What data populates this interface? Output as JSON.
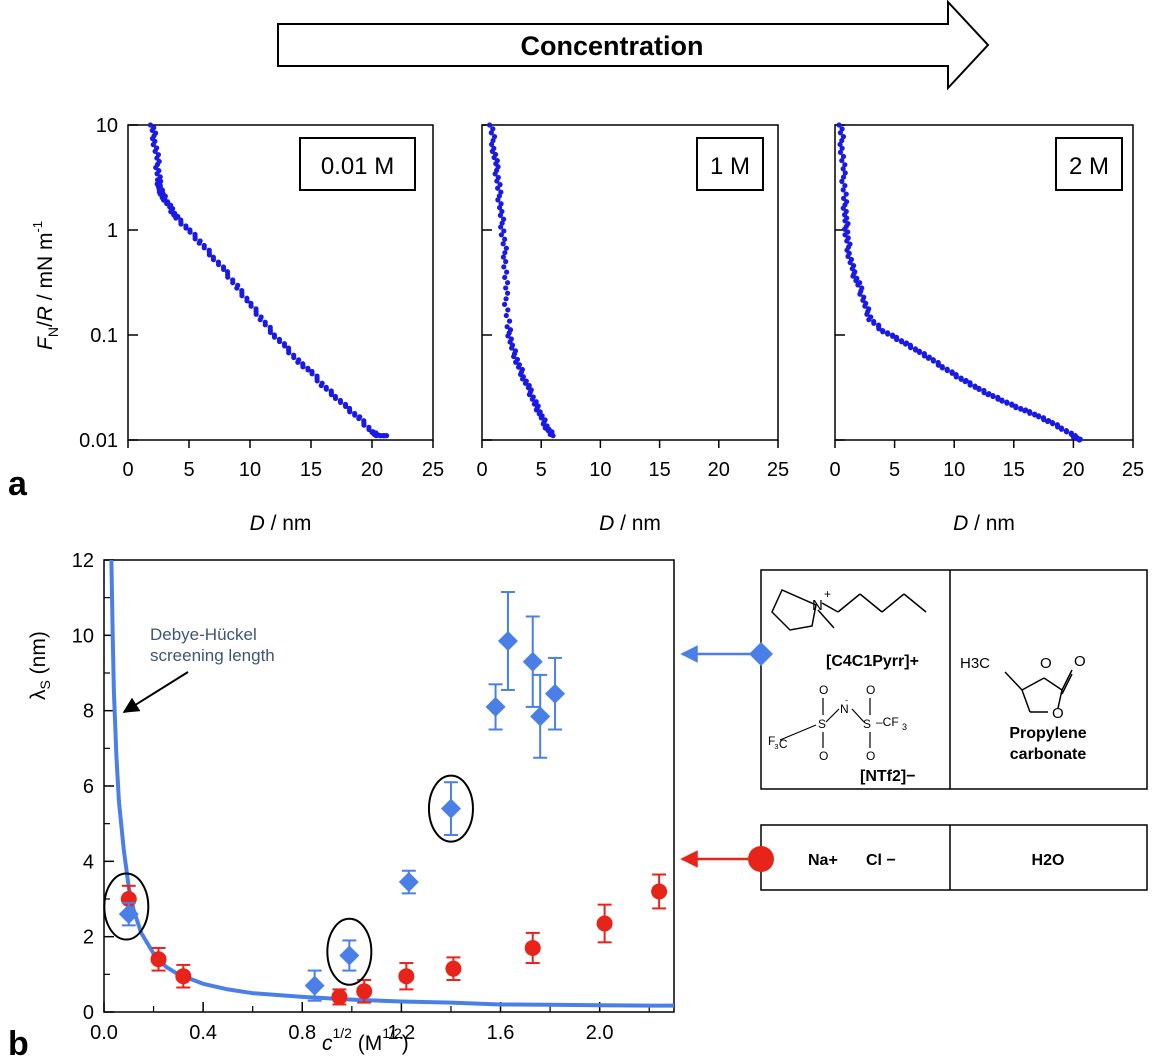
{
  "header": {
    "arrow_label": "Concentration"
  },
  "panel_a": {
    "letter": "a",
    "ylabel": {
      "F": "F",
      "N": "N",
      "slash": "/",
      "R": "R",
      "rest": " / mN m",
      "sup": "-1"
    },
    "xlabel": {
      "D": "D",
      "rest": " / nm"
    },
    "y_ticks": [
      "10",
      "1",
      "0.1",
      "0.01"
    ],
    "x_ticks": [
      "0",
      "5",
      "10",
      "15",
      "20",
      "25"
    ]
  },
  "panel_b": {
    "letter": "b",
    "ylabel": {
      "lambda": "λ",
      "sub": "S",
      "rest": " (nm)"
    },
    "xlabel": {
      "c": "c",
      "sup": "1/2",
      "rest": " (M",
      "sup2": "1/2",
      "close": ")"
    },
    "y_ticks": [
      "0",
      "2",
      "4",
      "6",
      "8",
      "10",
      "12"
    ],
    "x_ticks": [
      "0.0",
      "0.4",
      "0.8",
      "1.2",
      "1.6",
      "2.0"
    ],
    "annotation": {
      "line1": "Debye-Hückel",
      "line2": "screening length"
    },
    "legend": {
      "ionic_liquid": {
        "cation": "[C4C1Pyrr]+",
        "anion": "[NTf2]−",
        "solvent_line1": "Propylene",
        "solvent_line2": "carbonate",
        "methyl": "H3C"
      },
      "aqueous": {
        "cation": "Na+",
        "anion": "Cl −",
        "solvent": "H2O"
      }
    }
  },
  "colors": {
    "force_points": "#1a1ae6",
    "ionic_liquid": "#4a7fe8",
    "aqueous": "#e8231a",
    "annotation_text": "#3f5575",
    "debye_line": "#4a7fe8"
  },
  "chart_data": [
    {
      "type": "scatter",
      "label": "0.01 M",
      "x_axis": "D / nm",
      "y_axis": "F_N/R / mN m^-1",
      "xlim": [
        0,
        25
      ],
      "ylim": [
        0.01,
        10
      ],
      "yscale": "log",
      "grid": false,
      "x": [
        2.0,
        2.2,
        2.4,
        2.5,
        2.6,
        2.8,
        3.0,
        3.5,
        4.0,
        5.0,
        6.0,
        7.0,
        8.0,
        9.0,
        10.0,
        11.0,
        12.0,
        13.0,
        14.0,
        15.0,
        16.0,
        17.0,
        18.0,
        19.0,
        20.0,
        20.5,
        21.2
      ],
      "y": [
        10,
        7,
        4.5,
        3.0,
        2.5,
        2.2,
        2.0,
        1.6,
        1.3,
        1.0,
        0.75,
        0.55,
        0.4,
        0.28,
        0.2,
        0.14,
        0.1,
        0.075,
        0.055,
        0.045,
        0.033,
        0.026,
        0.02,
        0.016,
        0.012,
        0.011,
        0.011
      ]
    },
    {
      "type": "scatter",
      "label": "1 M",
      "x_axis": "D / nm",
      "y_axis": "F_N/R / mN m^-1",
      "xlim": [
        0,
        25
      ],
      "ylim": [
        0.01,
        10
      ],
      "yscale": "log",
      "grid": false,
      "x": [
        0.8,
        1.0,
        1.2,
        1.4,
        1.6,
        1.8,
        2.0,
        2.0,
        2.2,
        2.5,
        3.0,
        3.5,
        4.0,
        4.5,
        5.0,
        5.5,
        6.0
      ],
      "y": [
        10,
        6.0,
        4.0,
        2.5,
        1.5,
        0.9,
        0.5,
        0.25,
        0.12,
        0.08,
        0.055,
        0.04,
        0.03,
        0.022,
        0.017,
        0.013,
        0.011
      ]
    },
    {
      "type": "scatter",
      "label": "2 M",
      "x_axis": "D / nm",
      "y_axis": "F_N/R / mN m^-1",
      "xlim": [
        0,
        25
      ],
      "ylim": [
        0.01,
        10
      ],
      "yscale": "log",
      "grid": false,
      "x": [
        0.5,
        0.6,
        0.7,
        0.8,
        0.9,
        1.0,
        1.2,
        1.5,
        2.0,
        2.5,
        3.0,
        4.0,
        5.0,
        6.0,
        7.0,
        8.0,
        9.0,
        10.0,
        11.0,
        12.0,
        13.0,
        14.0,
        15.0,
        16.0,
        17.0,
        18.0,
        19.0,
        20.0,
        20.5
      ],
      "y": [
        10,
        6.0,
        3.5,
        2.0,
        1.3,
        0.9,
        0.6,
        0.4,
        0.3,
        0.2,
        0.14,
        0.11,
        0.095,
        0.082,
        0.07,
        0.06,
        0.05,
        0.042,
        0.036,
        0.031,
        0.027,
        0.024,
        0.021,
        0.019,
        0.017,
        0.015,
        0.013,
        0.011,
        0.01
      ]
    },
    {
      "type": "scatter",
      "x_axis": "c^1/2 (M^1/2)",
      "y_axis": "λS (nm)",
      "xlim": [
        0,
        2.3
      ],
      "ylim": [
        0,
        12
      ],
      "grid": false,
      "series": [
        {
          "marker": "diamond",
          "x": [
            0.1,
            0.85,
            0.99,
            1.23,
            1.4,
            1.58,
            1.63,
            1.73,
            1.76,
            1.82
          ],
          "y": [
            2.6,
            0.7,
            1.5,
            3.45,
            5.4,
            8.1,
            9.85,
            9.3,
            7.85,
            8.45
          ],
          "err": [
            0.3,
            0.4,
            0.4,
            0.3,
            0.7,
            0.6,
            1.3,
            1.2,
            1.1,
            0.95
          ]
        },
        {
          "marker": "circle",
          "x": [
            0.1,
            0.22,
            0.32,
            0.95,
            1.05,
            1.22,
            1.41,
            1.73,
            2.02,
            2.24
          ],
          "y": [
            3.0,
            1.4,
            0.95,
            0.4,
            0.55,
            0.95,
            1.15,
            1.7,
            2.35,
            3.2
          ],
          "err": [
            0.35,
            0.3,
            0.3,
            0.2,
            0.3,
            0.35,
            0.3,
            0.4,
            0.5,
            0.45
          ]
        },
        {
          "type": "line",
          "x": [
            0.03,
            0.035,
            0.04,
            0.05,
            0.06,
            0.08,
            0.1,
            0.12,
            0.15,
            0.2,
            0.25,
            0.3,
            0.4,
            0.5,
            0.6,
            0.8,
            1.0,
            1.2,
            1.4,
            1.6,
            1.8,
            2.0,
            2.2,
            2.3
          ],
          "y": [
            12,
            10.0,
            8.5,
            6.8,
            5.6,
            4.3,
            3.3,
            2.7,
            2.1,
            1.55,
            1.2,
            1.0,
            0.75,
            0.6,
            0.5,
            0.4,
            0.33,
            0.28,
            0.25,
            0.2,
            0.19,
            0.18,
            0.17,
            0.17
          ]
        }
      ]
    }
  ]
}
